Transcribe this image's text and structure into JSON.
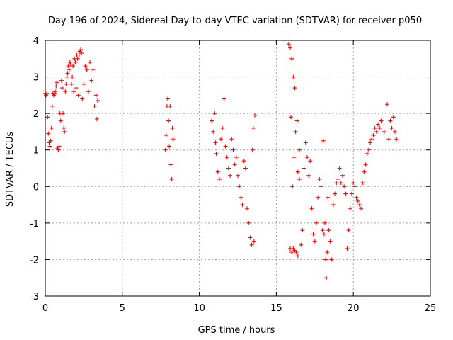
{
  "chart_data": {
    "type": "scatter",
    "title": "Day 196 of 2024, Sidereal Day-to-day VTEC variation (SDTVAR) for receiver p050",
    "xlabel": "GPS time / hours",
    "ylabel": "SDTVAR / TECUs",
    "xlim": [
      0,
      25
    ],
    "ylim": [
      -3,
      4
    ],
    "xticks": [
      0,
      5,
      10,
      15,
      20,
      25
    ],
    "yticks": [
      -3,
      -2,
      -1,
      0,
      1,
      2,
      3,
      4
    ],
    "xtick_labels": [
      "0",
      "5",
      "10",
      "15",
      "20",
      "25"
    ],
    "ytick_labels": [
      "-3",
      "-2",
      "-1",
      "0",
      "1",
      "2",
      "3",
      "4"
    ],
    "grid": true,
    "marker": "+",
    "color": "#ff0000",
    "series": [
      {
        "name": "SDTVAR",
        "points": [
          [
            0.0,
            2.55
          ],
          [
            0.05,
            2.5
          ],
          [
            0.1,
            2.55
          ],
          [
            0.15,
            1.9
          ],
          [
            0.2,
            1.45
          ],
          [
            0.25,
            1.2
          ],
          [
            0.3,
            1.1
          ],
          [
            0.35,
            1.25
          ],
          [
            0.4,
            1.6
          ],
          [
            0.45,
            2.2
          ],
          [
            0.5,
            2.55
          ],
          [
            0.55,
            2.5
          ],
          [
            0.6,
            2.55
          ],
          [
            0.65,
            2.6
          ],
          [
            0.7,
            2.75
          ],
          [
            0.75,
            2.85
          ],
          [
            0.8,
            1.05
          ],
          [
            0.85,
            1.0
          ],
          [
            0.9,
            1.1
          ],
          [
            0.95,
            2.0
          ],
          [
            1.0,
            1.8
          ],
          [
            1.05,
            2.9
          ],
          [
            1.1,
            2.7
          ],
          [
            1.15,
            2.0
          ],
          [
            1.2,
            1.6
          ],
          [
            1.25,
            1.5
          ],
          [
            1.3,
            2.6
          ],
          [
            1.35,
            2.8
          ],
          [
            1.4,
            3.0
          ],
          [
            1.45,
            3.1
          ],
          [
            1.5,
            3.3
          ],
          [
            1.55,
            3.2
          ],
          [
            1.6,
            3.4
          ],
          [
            1.65,
            3.35
          ],
          [
            1.7,
            2.8
          ],
          [
            1.75,
            3.0
          ],
          [
            1.8,
            3.3
          ],
          [
            1.85,
            2.6
          ],
          [
            1.9,
            3.5
          ],
          [
            1.95,
            3.4
          ],
          [
            2.0,
            2.7
          ],
          [
            2.05,
            3.6
          ],
          [
            2.1,
            3.5
          ],
          [
            2.15,
            2.5
          ],
          [
            2.2,
            3.6
          ],
          [
            2.25,
            3.7
          ],
          [
            2.3,
            3.75
          ],
          [
            2.35,
            3.65
          ],
          [
            2.4,
            2.4
          ],
          [
            2.5,
            2.8
          ],
          [
            2.6,
            3.3
          ],
          [
            2.7,
            3.2
          ],
          [
            2.8,
            2.6
          ],
          [
            2.9,
            3.4
          ],
          [
            3.0,
            2.9
          ],
          [
            3.1,
            3.2
          ],
          [
            3.2,
            2.2
          ],
          [
            3.3,
            2.5
          ],
          [
            3.35,
            1.85
          ],
          [
            3.4,
            2.35
          ],
          [
            7.8,
            1.0
          ],
          [
            7.85,
            1.4
          ],
          [
            7.9,
            2.2
          ],
          [
            7.95,
            2.4
          ],
          [
            8.0,
            1.8
          ],
          [
            8.05,
            1.1
          ],
          [
            8.1,
            2.2
          ],
          [
            8.15,
            0.6
          ],
          [
            8.2,
            0.2
          ],
          [
            8.25,
            1.6
          ],
          [
            8.3,
            1.3
          ],
          [
            10.8,
            1.8
          ],
          [
            10.9,
            1.5
          ],
          [
            11.0,
            2.0
          ],
          [
            11.05,
            1.2
          ],
          [
            11.1,
            0.9
          ],
          [
            11.2,
            0.4
          ],
          [
            11.3,
            0.2
          ],
          [
            11.4,
            1.3
          ],
          [
            11.5,
            1.6
          ],
          [
            11.6,
            2.4
          ],
          [
            11.7,
            1.1
          ],
          [
            11.8,
            0.8
          ],
          [
            11.9,
            0.5
          ],
          [
            12.0,
            0.3
          ],
          [
            12.1,
            1.3
          ],
          [
            12.2,
            1.0
          ],
          [
            12.3,
            0.6
          ],
          [
            12.4,
            0.8
          ],
          [
            12.5,
            0.3
          ],
          [
            12.6,
            0.0
          ],
          [
            12.7,
            -0.3
          ],
          [
            12.8,
            -0.5
          ],
          [
            12.9,
            0.7
          ],
          [
            13.0,
            0.5
          ],
          [
            13.1,
            -0.6
          ],
          [
            13.2,
            -1.0
          ],
          [
            13.3,
            -1.4
          ],
          [
            13.4,
            -1.6
          ],
          [
            13.45,
            1.0
          ],
          [
            13.5,
            1.6
          ],
          [
            13.55,
            -1.5
          ],
          [
            13.6,
            1.95
          ],
          [
            15.8,
            3.9
          ],
          [
            15.9,
            3.8
          ],
          [
            16.0,
            3.5
          ],
          [
            16.1,
            3.0
          ],
          [
            16.2,
            2.7
          ],
          [
            15.95,
            1.9
          ],
          [
            16.05,
            0.0
          ],
          [
            16.15,
            0.8
          ],
          [
            16.25,
            1.5
          ],
          [
            16.35,
            1.8
          ],
          [
            16.4,
            0.4
          ],
          [
            16.5,
            1.0
          ],
          [
            15.9,
            -1.7
          ],
          [
            16.0,
            -1.8
          ],
          [
            16.1,
            -1.7
          ],
          [
            16.2,
            -1.75
          ],
          [
            16.3,
            -1.8
          ],
          [
            16.4,
            -1.9
          ],
          [
            16.5,
            0.2
          ],
          [
            16.6,
            -1.6
          ],
          [
            16.7,
            -1.2
          ],
          [
            16.8,
            0.5
          ],
          [
            16.9,
            1.2
          ],
          [
            17.0,
            0.8
          ],
          [
            17.1,
            0.3
          ],
          [
            17.2,
            0.7
          ],
          [
            17.3,
            -0.6
          ],
          [
            17.4,
            -1.3
          ],
          [
            17.5,
            -1.5
          ],
          [
            17.6,
            -1.0
          ],
          [
            17.7,
            -0.3
          ],
          [
            17.8,
            0.2
          ],
          [
            17.9,
            0.0
          ],
          [
            18.0,
            -1.2
          ],
          [
            18.05,
            1.25
          ],
          [
            18.1,
            -1.3
          ],
          [
            18.15,
            -1.0
          ],
          [
            18.2,
            -2.0
          ],
          [
            18.25,
            -2.5
          ],
          [
            18.3,
            -1.8
          ],
          [
            18.35,
            -0.3
          ],
          [
            18.4,
            -1.2
          ],
          [
            18.5,
            -1.5
          ],
          [
            18.6,
            -2.0
          ],
          [
            18.7,
            -0.5
          ],
          [
            18.8,
            -0.2
          ],
          [
            18.9,
            0.1
          ],
          [
            19.0,
            0.2
          ],
          [
            19.1,
            0.5
          ],
          [
            19.2,
            0.1
          ],
          [
            19.3,
            0.3
          ],
          [
            19.4,
            0.0
          ],
          [
            19.5,
            -0.2
          ],
          [
            19.6,
            -1.7
          ],
          [
            19.7,
            -1.2
          ],
          [
            19.8,
            -0.6
          ],
          [
            19.9,
            -0.2
          ],
          [
            20.0,
            0.1
          ],
          [
            20.1,
            0.0
          ],
          [
            20.2,
            -0.3
          ],
          [
            20.3,
            -0.4
          ],
          [
            20.4,
            -0.5
          ],
          [
            20.5,
            -0.6
          ],
          [
            20.6,
            0.1
          ],
          [
            20.7,
            0.4
          ],
          [
            20.8,
            0.6
          ],
          [
            20.9,
            0.9
          ],
          [
            21.0,
            1.0
          ],
          [
            21.1,
            1.2
          ],
          [
            21.2,
            1.3
          ],
          [
            21.3,
            1.4
          ],
          [
            21.4,
            1.6
          ],
          [
            21.5,
            1.5
          ],
          [
            21.6,
            1.7
          ],
          [
            21.7,
            1.6
          ],
          [
            21.8,
            1.8
          ],
          [
            22.0,
            1.5
          ],
          [
            22.2,
            2.25
          ],
          [
            22.3,
            1.3
          ],
          [
            22.4,
            1.8
          ],
          [
            22.5,
            1.6
          ],
          [
            22.6,
            1.9
          ],
          [
            22.7,
            1.5
          ],
          [
            22.8,
            1.3
          ]
        ]
      }
    ]
  }
}
